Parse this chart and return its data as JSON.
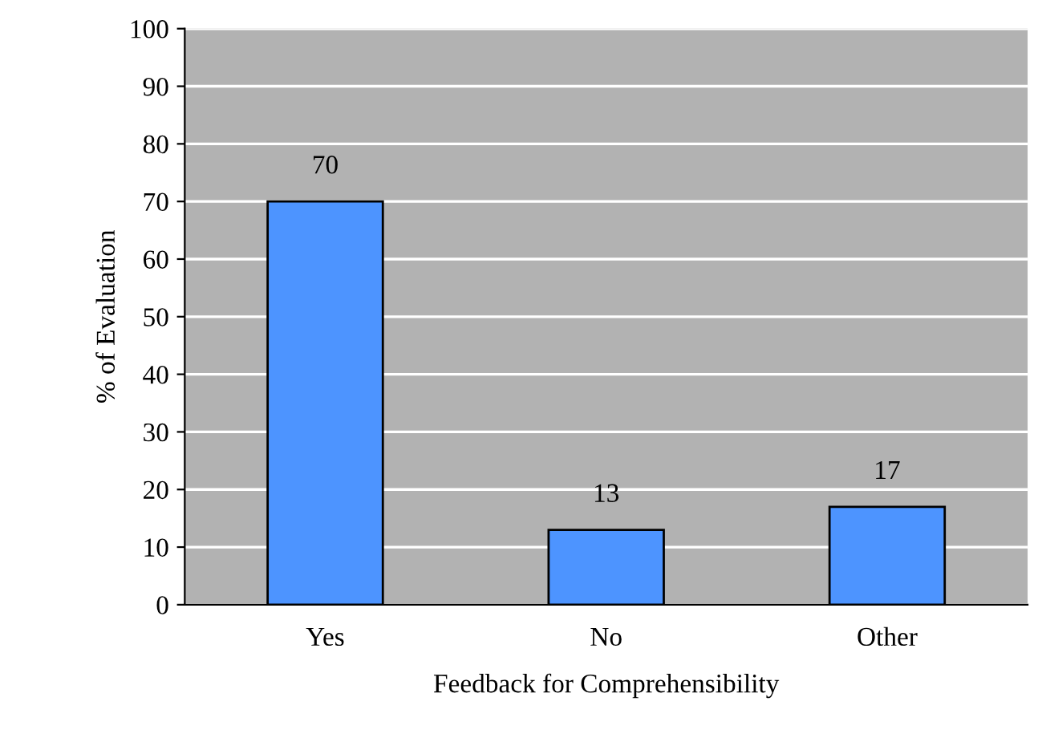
{
  "chart_data": {
    "type": "bar",
    "xlabel": "Feedback for Comprehensibility",
    "ylabel": "% of Evaluation",
    "categories": [
      "Yes",
      "No",
      "Other"
    ],
    "values": [
      70,
      13,
      17
    ],
    "color": "#4d94ff",
    "ylim": [
      0,
      100
    ],
    "yticks": [
      0,
      10,
      20,
      30,
      40,
      50,
      60,
      70,
      80,
      90,
      100
    ],
    "grid": "y",
    "data_labels": true
  }
}
